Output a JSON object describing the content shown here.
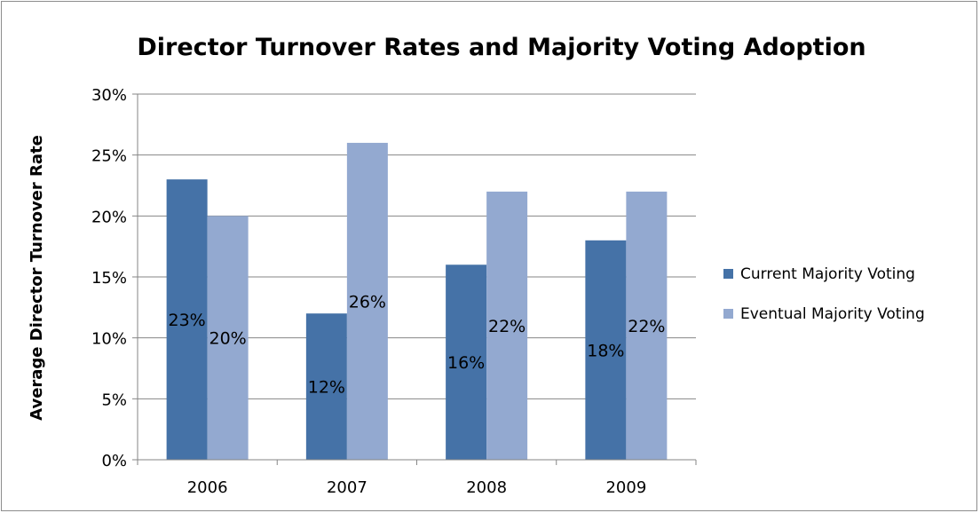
{
  "chart_data": {
    "type": "bar",
    "title": "Director Turnover Rates and Majority Voting Adoption",
    "xlabel": "",
    "ylabel": "Average Director Turnover Rate",
    "categories": [
      "2006",
      "2007",
      "2008",
      "2009"
    ],
    "series": [
      {
        "name": "Current Majority Voting",
        "values": [
          23,
          12,
          16,
          18
        ],
        "labels": [
          "23%",
          "12%",
          "16%",
          "18%"
        ]
      },
      {
        "name": "Eventual Majority Voting",
        "values": [
          20,
          26,
          22,
          22
        ],
        "labels": [
          "20%",
          "26%",
          "22%",
          "22%"
        ]
      }
    ],
    "ylim": [
      0,
      30
    ],
    "yticks": [
      0,
      5,
      10,
      15,
      20,
      25,
      30
    ],
    "ytick_labels": [
      "0%",
      "5%",
      "10%",
      "15%",
      "20%",
      "25%",
      "30%"
    ],
    "grid": true,
    "legend_position": "right",
    "colors": {
      "series": [
        "#4572a7",
        "#93a9d0"
      ],
      "grid": "#868686",
      "axis": "#868686",
      "frame": "#8c8c8c"
    }
  }
}
